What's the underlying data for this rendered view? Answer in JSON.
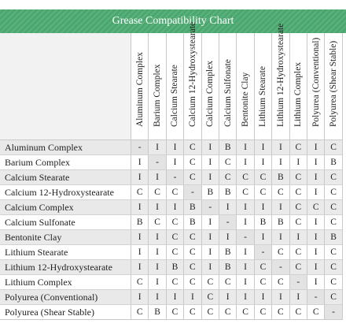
{
  "title": "Grease Compatibility Chart",
  "columns": [
    "Aluminum Complex",
    "Barium Complex",
    "Calcium Stearate",
    "Calcium 12-Hydroxystearate",
    "Calcium Complex",
    "Calcium Sulfonate",
    "Bentonite Clay",
    "Lithium Stearate",
    "Lithium 12-Hydroxystearate",
    "Lithium Complex",
    "Polyurea (Conventional)",
    "Polyurea (Shear Stable)"
  ],
  "rows": [
    {
      "label": "Aluminum Complex",
      "values": [
        "-",
        "I",
        "I",
        "C",
        "I",
        "B",
        "I",
        "I",
        "I",
        "C",
        "I",
        "C"
      ]
    },
    {
      "label": "Barium Complex",
      "values": [
        "I",
        "-",
        "I",
        "C",
        "I",
        "C",
        "I",
        "I",
        "I",
        "I",
        "I",
        "B"
      ]
    },
    {
      "label": "Calcium Stearate",
      "values": [
        "I",
        "I",
        "-",
        "C",
        "I",
        "C",
        "C",
        "C",
        "B",
        "C",
        "I",
        "C"
      ]
    },
    {
      "label": "Calcium 12-Hydroxystearate",
      "values": [
        "C",
        "C",
        "C",
        "-",
        "B",
        "B",
        "C",
        "C",
        "C",
        "C",
        "I",
        "C"
      ]
    },
    {
      "label": "Calcium Complex",
      "values": [
        "I",
        "I",
        "I",
        "B",
        "-",
        "I",
        "I",
        "I",
        "I",
        "C",
        "C",
        "C"
      ]
    },
    {
      "label": "Calcium Sulfonate",
      "values": [
        "B",
        "C",
        "C",
        "B",
        "I",
        "-",
        "I",
        "B",
        "B",
        "C",
        "I",
        "C"
      ]
    },
    {
      "label": "Bentonite Clay",
      "values": [
        "I",
        "I",
        "C",
        "C",
        "I",
        "I",
        "-",
        "I",
        "I",
        "I",
        "I",
        "B"
      ]
    },
    {
      "label": "Lithium Stearate",
      "values": [
        "I",
        "I",
        "C",
        "C",
        "I",
        "B",
        "I",
        "-",
        "C",
        "C",
        "I",
        "C"
      ]
    },
    {
      "label": "Lithium 12-Hydroxystearate",
      "values": [
        "I",
        "I",
        "B",
        "C",
        "I",
        "B",
        "I",
        "C",
        "-",
        "C",
        "I",
        "C"
      ]
    },
    {
      "label": "Lithium Complex",
      "values": [
        "C",
        "I",
        "C",
        "C",
        "C",
        "C",
        "I",
        "C",
        "C",
        "-",
        "I",
        "C"
      ]
    },
    {
      "label": "Polyurea (Conventional)",
      "values": [
        "I",
        "I",
        "I",
        "I",
        "C",
        "I",
        "I",
        "I",
        "I",
        "I",
        "-",
        "C"
      ]
    },
    {
      "label": "Polyurea (Shear Stable)",
      "values": [
        "C",
        "B",
        "C",
        "C",
        "C",
        "C",
        "C",
        "C",
        "C",
        "C",
        "C",
        "-"
      ]
    }
  ],
  "colors": {
    "header": "#4aa86f",
    "stripe": "#eaeaea",
    "grid": "#c9c9c9"
  }
}
